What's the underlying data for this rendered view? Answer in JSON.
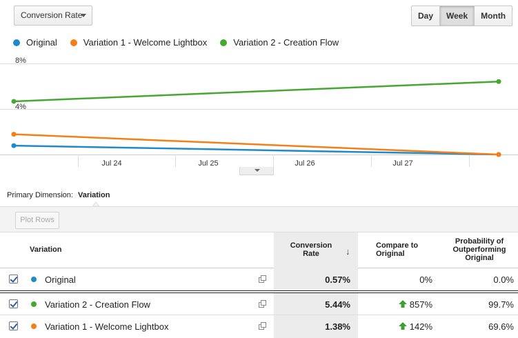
{
  "controls": {
    "metric_label": "Conversion Rate",
    "range_buttons": [
      {
        "label": "Day",
        "active": false
      },
      {
        "label": "Week",
        "active": true
      },
      {
        "label": "Month",
        "active": false
      }
    ]
  },
  "legend": [
    {
      "name": "Original",
      "color": "#1f8ac9"
    },
    {
      "name": "Variation 1 - Welcome Lightbox",
      "color": "#f57f17"
    },
    {
      "name": "Variation 2 - Creation Flow",
      "color": "#44a832"
    }
  ],
  "chart_data": {
    "type": "line",
    "y_tick_labels": [
      "8%",
      "4%"
    ],
    "x_tick_labels": [
      "Jul 24",
      "Jul 25",
      "Jul 26",
      "Jul 27"
    ],
    "ylim": [
      0,
      8
    ],
    "grid": true,
    "series": [
      {
        "name": "Original",
        "color": "#1f8ac9",
        "values": [
          0.78,
          0.0
        ]
      },
      {
        "name": "Variation 1 - Welcome Lightbox",
        "color": "#f57f17",
        "values": [
          1.78,
          0.0
        ]
      },
      {
        "name": "Variation 2 - Creation Flow",
        "color": "#44a832",
        "values": [
          4.67,
          6.41
        ]
      }
    ]
  },
  "dimension": {
    "label": "Primary Dimension:",
    "value": "Variation"
  },
  "toolbar": {
    "plot_rows_label": "Plot Rows"
  },
  "table": {
    "headers": {
      "variation": "Variation",
      "conversion_rate": [
        "Conversion",
        "Rate"
      ],
      "compare": [
        "Compare to",
        "Original"
      ],
      "probability": [
        "Probability of",
        "Outperforming",
        "Original"
      ]
    },
    "sort_indicator": "↓",
    "rows": [
      {
        "name": "Original",
        "color": "#1f8ac9",
        "conversion_rate": "0.57%",
        "compare": "0%",
        "up": false,
        "probability": "0.0%"
      },
      {
        "name": "Variation 2 - Creation Flow",
        "color": "#44a832",
        "conversion_rate": "5.44%",
        "compare": "857%",
        "up": true,
        "probability": "99.7%"
      },
      {
        "name": "Variation 1 - Welcome Lightbox",
        "color": "#f57f17",
        "conversion_rate": "1.38%",
        "compare": "142%",
        "up": true,
        "probability": "69.6%"
      }
    ]
  }
}
